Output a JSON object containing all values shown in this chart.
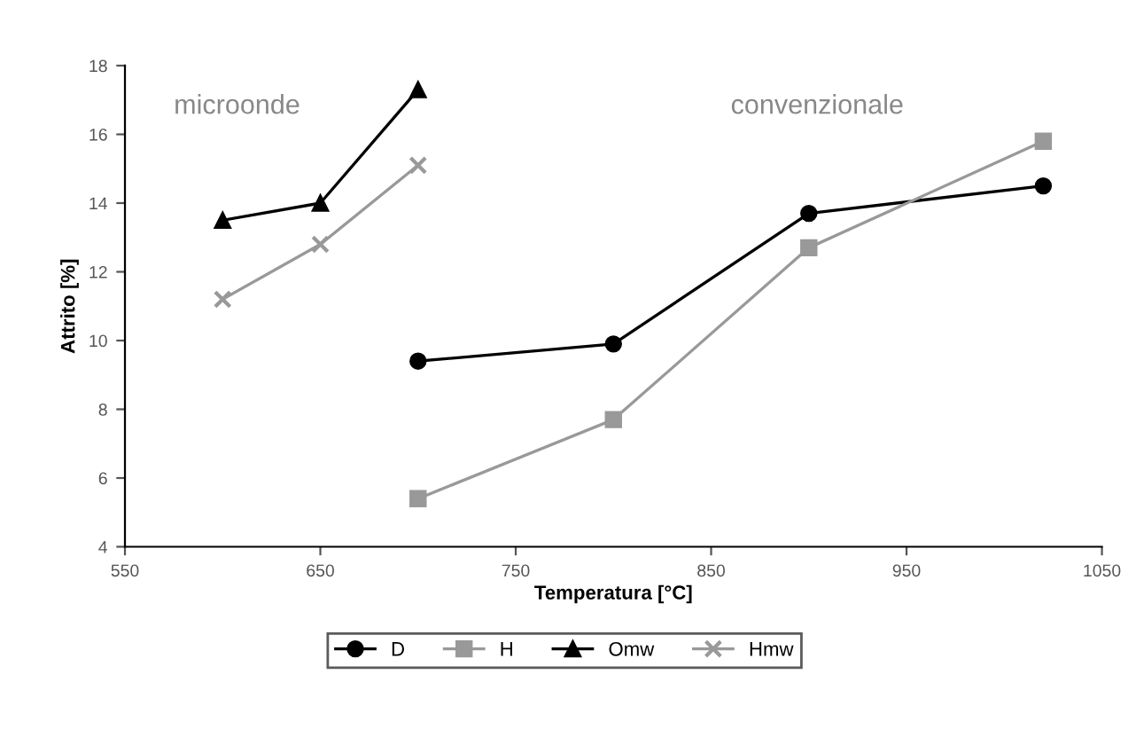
{
  "chart_data": {
    "type": "line",
    "xlabel": "Temperatura [°C]",
    "ylabel": "Attrito [%]",
    "xlim": [
      550,
      1050
    ],
    "xticks": [
      550,
      650,
      750,
      850,
      950,
      1050
    ],
    "ylim": [
      4,
      18
    ],
    "yticks": [
      4,
      6,
      8,
      10,
      12,
      14,
      16,
      18
    ],
    "grid": false,
    "legend": "bottom",
    "line_style": "solid",
    "annotations": [
      "microonde",
      "convenzionale"
    ],
    "series": [
      {
        "name": "D",
        "color": "#000000",
        "marker": "circle",
        "x": [
          700,
          800,
          900,
          1020
        ],
        "values": [
          9.4,
          9.9,
          13.7,
          14.5
        ]
      },
      {
        "name": "H",
        "color": "#999999",
        "marker": "square",
        "x": [
          700,
          800,
          900,
          1020
        ],
        "values": [
          5.4,
          7.7,
          12.7,
          15.8
        ]
      },
      {
        "name": "Omw",
        "color": "#000000",
        "marker": "triangle",
        "x": [
          600,
          650,
          700
        ],
        "values": [
          13.5,
          14.0,
          17.3
        ]
      },
      {
        "name": "Hmw",
        "color": "#999999",
        "marker": "cross",
        "x": [
          600,
          650,
          700
        ],
        "values": [
          11.2,
          12.8,
          15.1
        ]
      }
    ]
  }
}
